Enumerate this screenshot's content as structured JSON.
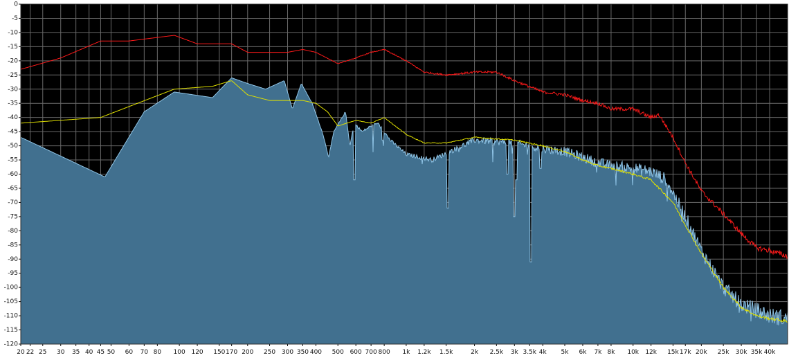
{
  "chart_data": {
    "type": "area",
    "title": "",
    "xlabel": "",
    "ylabel": "",
    "x_scale": "log",
    "xlim": [
      20,
      48000
    ],
    "ylim": [
      -120,
      0
    ],
    "grid": true,
    "legend": "none",
    "x_ticks": [
      {
        "v": 20,
        "label": "20"
      },
      {
        "v": 22,
        "label": "22"
      },
      {
        "v": 25,
        "label": "25"
      },
      {
        "v": 30,
        "label": "30"
      },
      {
        "v": 35,
        "label": "35"
      },
      {
        "v": 40,
        "label": "40"
      },
      {
        "v": 45,
        "label": "45"
      },
      {
        "v": 50,
        "label": "50"
      },
      {
        "v": 60,
        "label": "60"
      },
      {
        "v": 70,
        "label": "70"
      },
      {
        "v": 80,
        "label": "80"
      },
      {
        "v": 100,
        "label": "100"
      },
      {
        "v": 120,
        "label": "120"
      },
      {
        "v": 150,
        "label": "150"
      },
      {
        "v": 170,
        "label": "170"
      },
      {
        "v": 200,
        "label": "200"
      },
      {
        "v": 250,
        "label": "250"
      },
      {
        "v": 300,
        "label": "300"
      },
      {
        "v": 350,
        "label": "350"
      },
      {
        "v": 400,
        "label": "400"
      },
      {
        "v": 500,
        "label": "500"
      },
      {
        "v": 600,
        "label": "600"
      },
      {
        "v": 700,
        "label": "700"
      },
      {
        "v": 800,
        "label": "800"
      },
      {
        "v": 1000,
        "label": "1k"
      },
      {
        "v": 1200,
        "label": "1.2k"
      },
      {
        "v": 1500,
        "label": "1.5k"
      },
      {
        "v": 2000,
        "label": "2k"
      },
      {
        "v": 2500,
        "label": "2.5k"
      },
      {
        "v": 3000,
        "label": "3k"
      },
      {
        "v": 3500,
        "label": "3.5k"
      },
      {
        "v": 4000,
        "label": "4k"
      },
      {
        "v": 5000,
        "label": "5k"
      },
      {
        "v": 6000,
        "label": "6k"
      },
      {
        "v": 7000,
        "label": "7k"
      },
      {
        "v": 8000,
        "label": "8k"
      },
      {
        "v": 10000,
        "label": "10k"
      },
      {
        "v": 12000,
        "label": "12k"
      },
      {
        "v": 15000,
        "label": "15k"
      },
      {
        "v": 17000,
        "label": "17k"
      },
      {
        "v": 20000,
        "label": "20k"
      },
      {
        "v": 25000,
        "label": "25k"
      },
      {
        "v": 30000,
        "label": "30k"
      },
      {
        "v": 35000,
        "label": "35k"
      },
      {
        "v": 40000,
        "label": "40k"
      }
    ],
    "y_ticks": [
      0,
      -5,
      -10,
      -15,
      -20,
      -25,
      -30,
      -35,
      -40,
      -45,
      -50,
      -55,
      -60,
      -65,
      -70,
      -75,
      -80,
      -85,
      -90,
      -95,
      -100,
      -105,
      -110,
      -115,
      -120
    ],
    "series": [
      {
        "kind": "area",
        "color": "#41708f",
        "edge_color": "#8fc4e6",
        "jitter": 6,
        "x": [
          20,
          47,
          70,
          95,
          140,
          170,
          200,
          240,
          290,
          315,
          345,
          385,
          430,
          455,
          480,
          540,
          565,
          590,
          640,
          700,
          750,
          850,
          1000,
          1300,
          2000,
          3000,
          4000,
          5000,
          6000,
          7000,
          8000,
          10000,
          12000,
          14000,
          17000,
          20000,
          25000,
          30000,
          35000,
          40000,
          48000
        ],
        "y": [
          -47,
          -61,
          -38,
          -31,
          -33,
          -26,
          -28,
          -30,
          -27,
          -37,
          -28,
          -35,
          -46,
          -54,
          -45,
          -38,
          -50,
          -42,
          -45,
          -43,
          -42,
          -48,
          -53,
          -55,
          -48,
          -49,
          -51,
          -52,
          -54,
          -56,
          -57,
          -58,
          -59,
          -62,
          -75,
          -87,
          -100,
          -106,
          -108,
          -110,
          -111
        ],
        "dips": [
          [
            590,
            -62
          ],
          [
            790,
            -48
          ],
          [
            1520,
            -72
          ],
          [
            2800,
            -60
          ],
          [
            3000,
            -75
          ],
          [
            3050,
            -62
          ],
          [
            3550,
            -91
          ],
          [
            3900,
            -58
          ]
        ]
      },
      {
        "kind": "line",
        "color": "#ff1a1a",
        "jitter": 2,
        "x": [
          20,
          30,
          45,
          60,
          95,
          120,
          170,
          200,
          250,
          300,
          350,
          400,
          500,
          600,
          700,
          800,
          1000,
          1200,
          1500,
          2000,
          2500,
          3000,
          4000,
          5000,
          6000,
          7000,
          8000,
          10000,
          12000,
          13000,
          15000,
          17000,
          20000,
          25000,
          30000,
          35000,
          40000,
          48000
        ],
        "y": [
          -23,
          -19,
          -13,
          -13,
          -11,
          -14,
          -14,
          -17,
          -17,
          -17,
          -16,
          -17,
          -21,
          -19,
          -17,
          -16,
          -20,
          -24,
          -25,
          -24,
          -24,
          -27,
          -31,
          -32,
          -34,
          -35,
          -37,
          -37,
          -40,
          -39,
          -47,
          -56,
          -66,
          -74,
          -81,
          -86,
          -87,
          -89
        ],
        "dips": [
          [
            780,
            -14
          ]
        ]
      },
      {
        "kind": "line",
        "color": "#e0e000",
        "jitter": 1,
        "x": [
          20,
          45,
          95,
          140,
          170,
          200,
          250,
          300,
          350,
          400,
          450,
          500,
          600,
          700,
          800,
          1000,
          1200,
          1500,
          2000,
          3000,
          4000,
          5000,
          6000,
          7000,
          8000,
          10000,
          12000,
          15000,
          17000,
          20000,
          25000,
          30000,
          35000,
          40000,
          48000
        ],
        "y": [
          -42,
          -40,
          -30,
          -29,
          -27,
          -32,
          -34,
          -34,
          -34,
          -35,
          -38,
          -43,
          -41,
          -42,
          -40,
          -46,
          -49,
          -49,
          -47,
          -48,
          -50,
          -52,
          -55,
          -57,
          -58,
          -60,
          -62,
          -70,
          -78,
          -88,
          -100,
          -107,
          -110,
          -111,
          -112
        ],
        "dips": [
          [
            31500,
            -102
          ]
        ]
      }
    ]
  }
}
